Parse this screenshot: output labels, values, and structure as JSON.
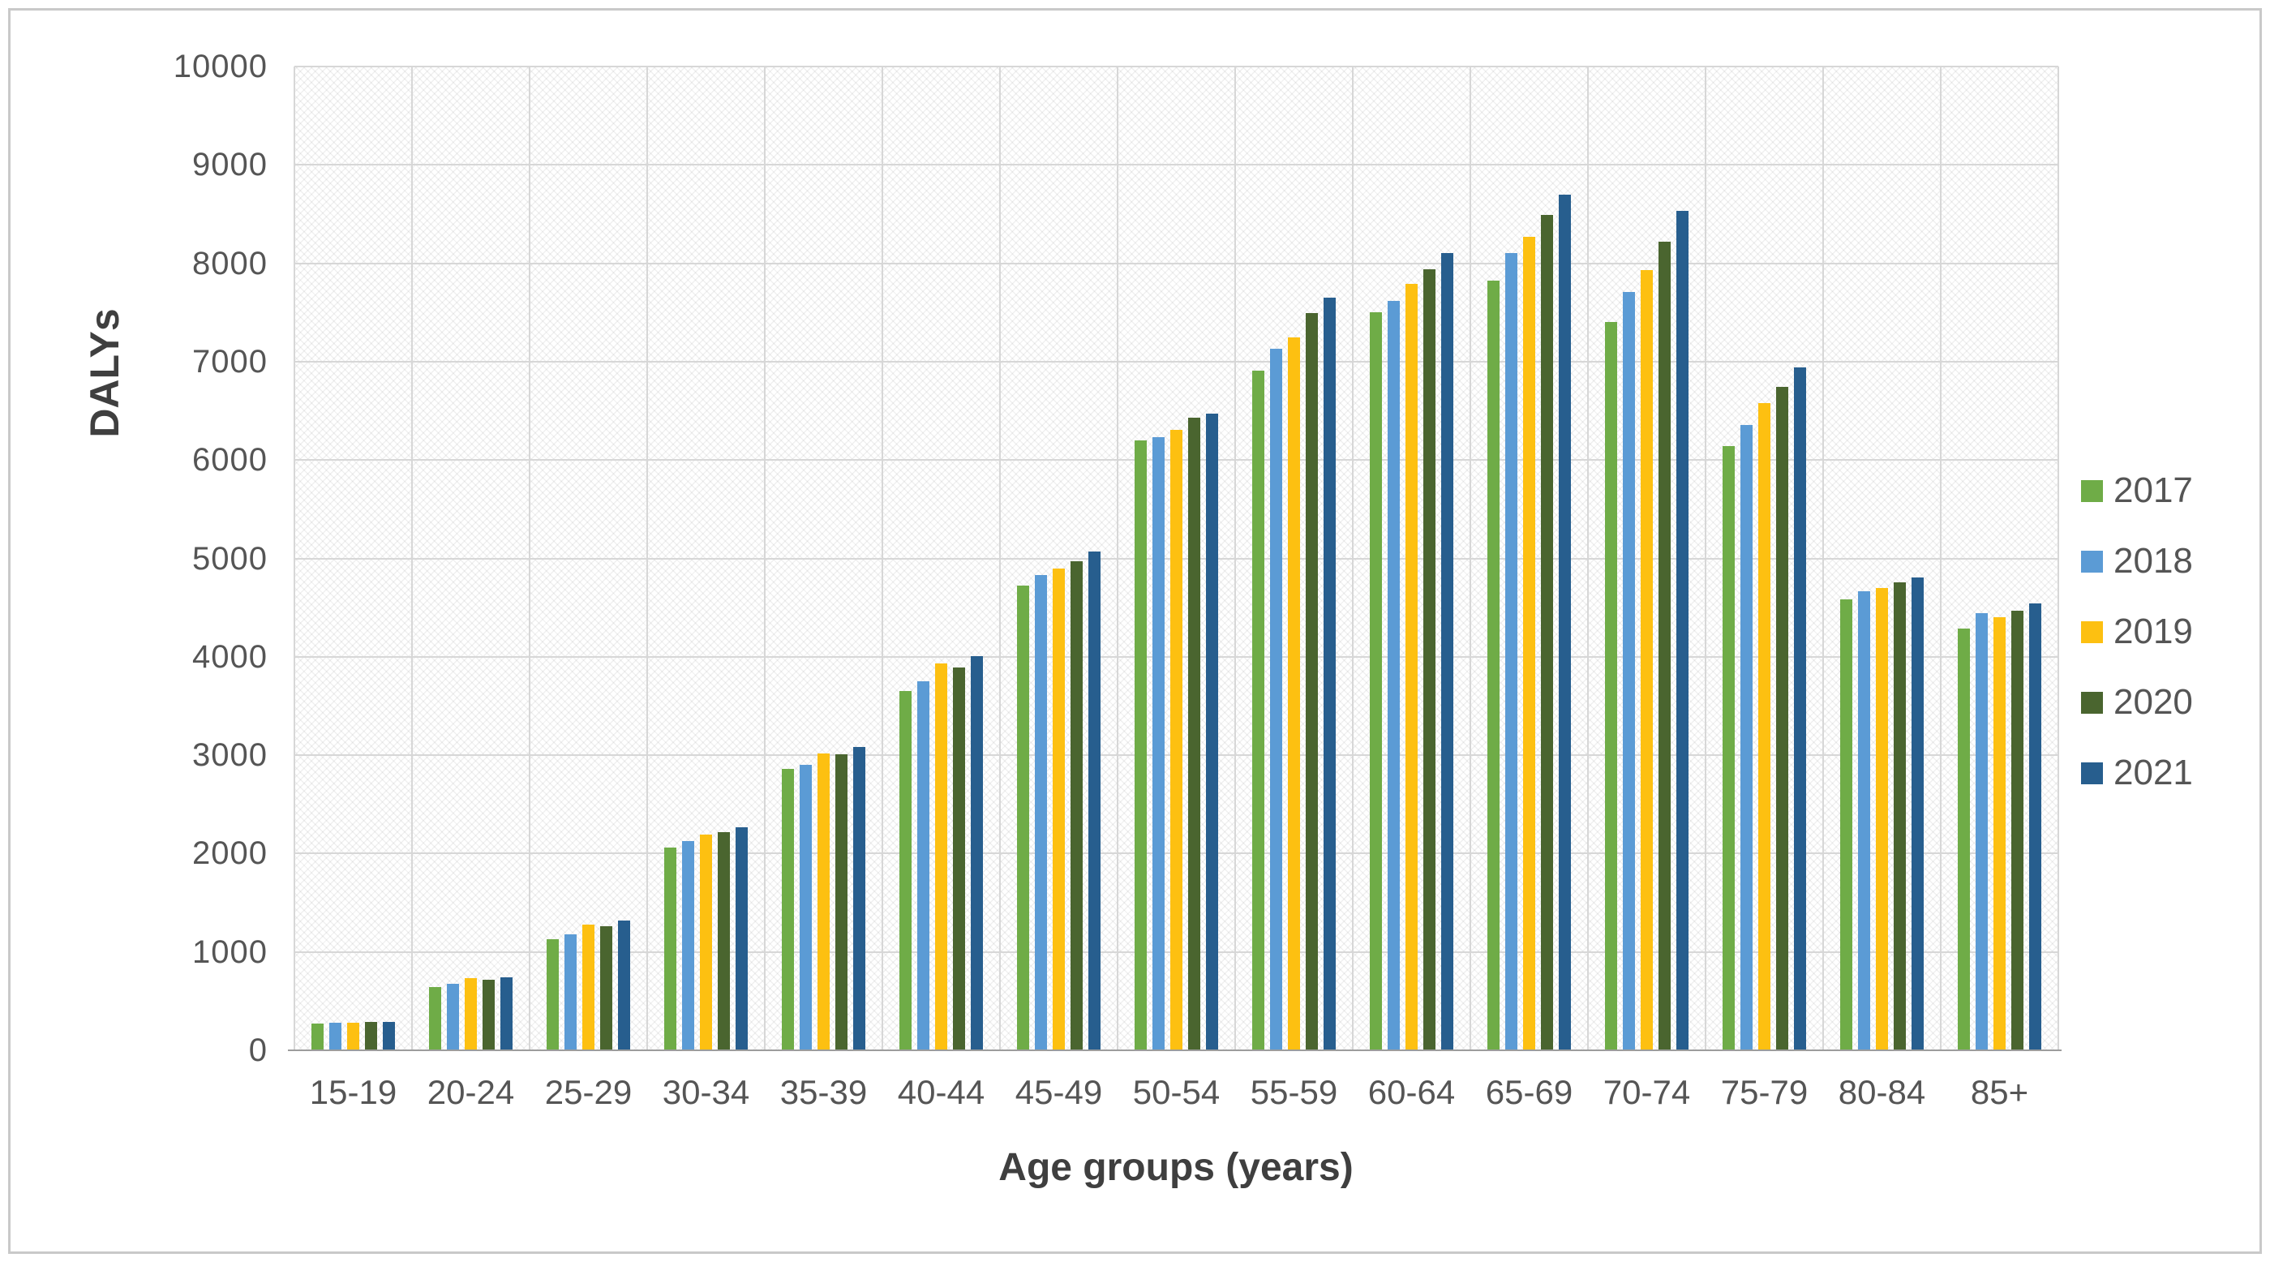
{
  "chart_data": {
    "type": "bar",
    "title": "",
    "xlabel": "Age groups (years)",
    "ylabel": "DALYs",
    "categories": [
      "15-19",
      "20-24",
      "25-29",
      "30-34",
      "35-39",
      "40-44",
      "45-49",
      "50-54",
      "55-59",
      "60-64",
      "65-69",
      "70-74",
      "75-79",
      "80-84",
      "85+"
    ],
    "series": [
      {
        "name": "2017",
        "color": "#6FAC47",
        "values": [
          275,
          640,
          1130,
          2060,
          2860,
          3650,
          4720,
          6200,
          6910,
          7500,
          7820,
          7400,
          6140,
          4580,
          4290
        ]
      },
      {
        "name": "2018",
        "color": "#5B9BD5",
        "values": [
          280,
          680,
          1180,
          2130,
          2900,
          3750,
          4830,
          6230,
          7130,
          7620,
          8100,
          7710,
          6360,
          4670,
          4440
        ]
      },
      {
        "name": "2019",
        "color": "#FDC011",
        "values": [
          280,
          735,
          1280,
          2190,
          3020,
          3930,
          4900,
          6310,
          7250,
          7790,
          8270,
          7930,
          6580,
          4700,
          4400
        ]
      },
      {
        "name": "2020",
        "color": "#4A652F",
        "values": [
          285,
          720,
          1260,
          2220,
          3010,
          3890,
          4970,
          6430,
          7490,
          7940,
          8490,
          8220,
          6740,
          4760,
          4470
        ]
      },
      {
        "name": "2021",
        "color": "#275E8E",
        "values": [
          290,
          740,
          1320,
          2270,
          3080,
          4010,
          5070,
          6470,
          7650,
          8100,
          8700,
          8530,
          6940,
          4810,
          4540
        ]
      }
    ],
    "ylim": [
      0,
      10000
    ],
    "yticks": [
      0,
      1000,
      2000,
      3000,
      4000,
      5000,
      6000,
      7000,
      8000,
      9000,
      10000
    ],
    "grid": "horizontal gridlines every 1000 and vertical category boundaries",
    "plot_background": "light gray diagonal crosshatch pattern",
    "legend_position": "right",
    "gridline_color": "#d7d7d7",
    "axis_line_color": "#9d9d9d",
    "tick_text_color": "#555555"
  }
}
